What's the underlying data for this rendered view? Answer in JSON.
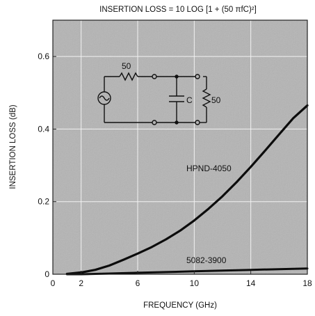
{
  "chart_data": {
    "type": "line",
    "title": "INSERTION LOSS = 10 LOG [1 + (50 πfC)²]",
    "xlabel": "FREQUENCY (GHz)",
    "ylabel": "INSERTION LOSS (dB)",
    "xlim": [
      0,
      18
    ],
    "ylim": [
      0,
      0.7
    ],
    "xticks": [
      "0",
      "2",
      "6",
      "10",
      "14",
      "18"
    ],
    "yticks": [
      "0",
      "0.2",
      "0.4",
      "0.6"
    ],
    "grid": true,
    "series": [
      {
        "name": "HPND-4050",
        "x": [
          1,
          2,
          3,
          4,
          5,
          6,
          7,
          8,
          9,
          10,
          11,
          12,
          13,
          14,
          15,
          16,
          17,
          18
        ],
        "y": [
          0.001,
          0.005,
          0.012,
          0.024,
          0.04,
          0.057,
          0.075,
          0.096,
          0.12,
          0.148,
          0.18,
          0.215,
          0.254,
          0.296,
          0.34,
          0.385,
          0.43,
          0.465
        ]
      },
      {
        "name": "5082-3900",
        "x": [
          1,
          2,
          4,
          6,
          8,
          10,
          12,
          14,
          16,
          18
        ],
        "y": [
          0.0,
          0.0,
          0.002,
          0.004,
          0.006,
          0.008,
          0.01,
          0.012,
          0.014,
          0.016
        ]
      }
    ],
    "inset": {
      "resistor_label": "50",
      "capacitor_label": "C",
      "load_label": "50"
    }
  }
}
